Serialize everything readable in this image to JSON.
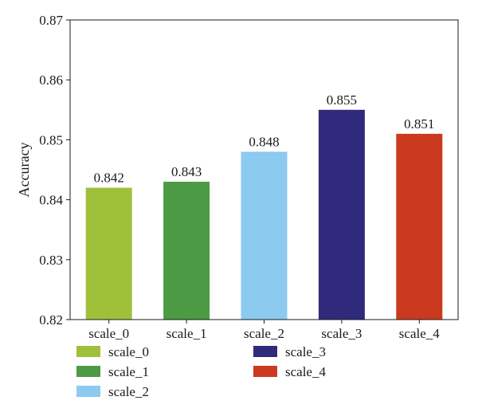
{
  "chart_data": {
    "type": "bar",
    "title": "",
    "xlabel": "",
    "ylabel": "Accuracy",
    "categories": [
      "scale_0",
      "scale_1",
      "scale_2",
      "scale_3",
      "scale_4"
    ],
    "values": [
      0.842,
      0.843,
      0.848,
      0.855,
      0.851
    ],
    "data_labels": [
      "0.842",
      "0.843",
      "0.848",
      "0.855",
      "0.851"
    ],
    "colors": [
      "#9fc03a",
      "#4c9a44",
      "#8ccaf0",
      "#302a7c",
      "#cb3a1e"
    ],
    "ylim": [
      0.82,
      0.87
    ],
    "yticks": [
      0.82,
      0.83,
      0.84,
      0.85,
      0.86,
      0.87
    ],
    "ytick_labels": [
      "0.82",
      "0.83",
      "0.84",
      "0.85",
      "0.86",
      "0.87"
    ],
    "grid": false,
    "legend": {
      "placement": "bottom",
      "entries": [
        "scale_0",
        "scale_1",
        "scale_2",
        "scale_3",
        "scale_4"
      ]
    }
  }
}
